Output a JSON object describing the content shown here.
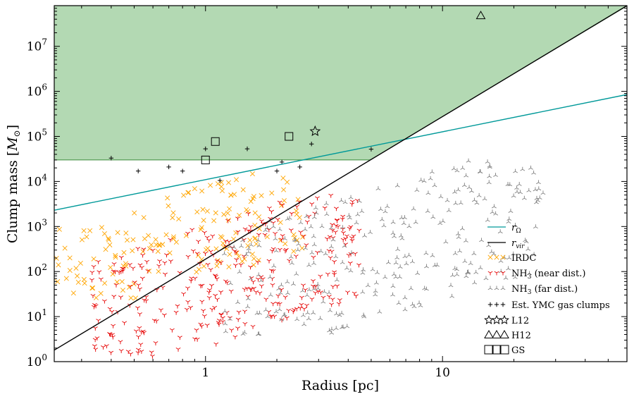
{
  "chart_data": {
    "type": "scatter",
    "title": "",
    "xlabel": "Radius [pc]",
    "ylabel": "Clump mass [",
    "ylabel_symbol": "M",
    "ylabel_subscript": "⊙",
    "ylabel_close": "]",
    "xscale": "log",
    "yscale": "log",
    "xlim": [
      0.23,
      60
    ],
    "ylim": [
      1,
      80000000
    ],
    "x_ticks": [
      {
        "value": 1,
        "label": "1"
      },
      {
        "value": 10,
        "label": "10"
      }
    ],
    "y_ticks": [
      {
        "value": 1,
        "base": "10",
        "exp": "0"
      },
      {
        "value": 10,
        "base": "10",
        "exp": "1"
      },
      {
        "value": 100,
        "base": "10",
        "exp": "2"
      },
      {
        "value": 1000,
        "base": "10",
        "exp": "3"
      },
      {
        "value": 10000,
        "base": "10",
        "exp": "4"
      },
      {
        "value": 100000,
        "base": "10",
        "exp": "5"
      },
      {
        "value": 1000000,
        "base": "10",
        "exp": "6"
      },
      {
        "value": 10000000,
        "base": "10",
        "exp": "7"
      }
    ],
    "shaded_region": {
      "color": "#b3d9b3",
      "edge_color": "#3a8a3a",
      "lower_mass": 30000,
      "upper_bound": "r_vir"
    },
    "lines": [
      {
        "name": "r_Ω",
        "symbol": "r",
        "subscript": "Ω",
        "color": "#009999",
        "points": [
          [
            0.23,
            2300
          ],
          [
            60,
            850000
          ]
        ]
      },
      {
        "name": "r_vir",
        "symbol": "r",
        "subscript": "vir",
        "color": "#000000",
        "points": [
          [
            0.23,
            1.8
          ],
          [
            60,
            80000000
          ]
        ]
      }
    ],
    "series": [
      {
        "name": "IRDC",
        "label": "IRDC",
        "marker": "x",
        "color": "#ffa500",
        "count": 170,
        "x_range": [
          0.23,
          2.6
        ],
        "y_range": [
          25,
          15000
        ]
      },
      {
        "name": "NH3 near",
        "label_main": "NH",
        "label_sub": "3",
        "label_rest": " (near dist.)",
        "marker": "tri_down",
        "color": "#e60000",
        "count": 330,
        "x_range": [
          0.33,
          4.5
        ],
        "y_range": [
          1.3,
          5000
        ]
      },
      {
        "name": "NH3 far",
        "label_main": "NH",
        "label_sub": "3",
        "label_rest": " (far dist.)",
        "marker": "tri_up",
        "color": "#808080",
        "count": 300,
        "x_range": [
          1.2,
          27
        ],
        "y_range": [
          4,
          30000
        ]
      },
      {
        "name": "Est. YMC gas clumps",
        "label": "Est. YMC gas clumps",
        "marker": "plus",
        "color": "#000000",
        "points": [
          [
            0.4,
            33000
          ],
          [
            0.52,
            17000
          ],
          [
            0.7,
            21000
          ],
          [
            0.8,
            17000
          ],
          [
            1.0,
            53000
          ],
          [
            1.15,
            10500
          ],
          [
            1.5,
            53000
          ],
          [
            2.0,
            17000
          ],
          [
            2.1,
            27000
          ],
          [
            2.5,
            21000
          ],
          [
            2.8,
            68000
          ],
          [
            5.0,
            52000
          ]
        ]
      },
      {
        "name": "L12",
        "label": "L12",
        "marker": "star",
        "color": "#000000",
        "points": [
          [
            2.9,
            130000
          ]
        ]
      },
      {
        "name": "H12",
        "label": "H12",
        "marker": "triangle",
        "color": "#000000",
        "points": [
          [
            14.5,
            48000000
          ]
        ]
      },
      {
        "name": "GS",
        "label": "GS",
        "marker": "square",
        "color": "#000000",
        "points": [
          [
            1.0,
            30000
          ],
          [
            1.1,
            77000
          ],
          [
            2.25,
            100000
          ]
        ]
      }
    ],
    "legend": {
      "position": "bottom-right"
    }
  }
}
